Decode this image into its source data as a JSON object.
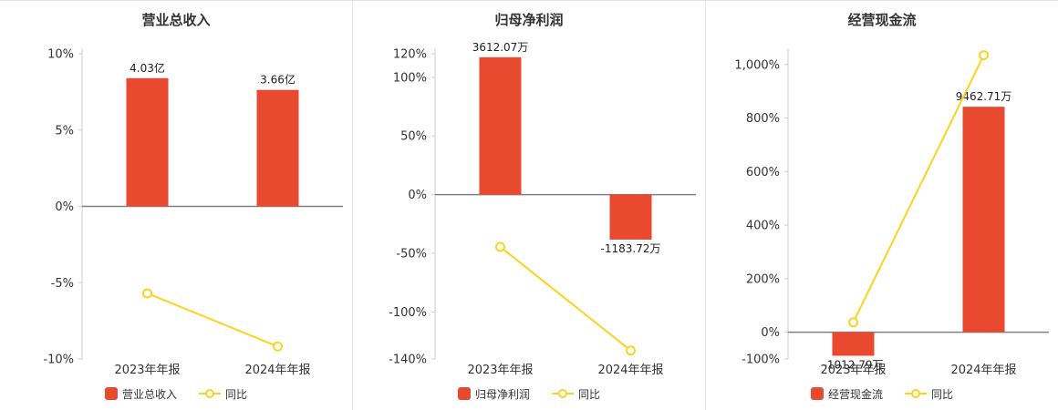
{
  "page": {
    "background": "#ffffff"
  },
  "chart_data": [
    {
      "type": "bar",
      "title": "营业总收入",
      "categories": [
        "2023年年报",
        "2024年年报"
      ],
      "bar_series": {
        "name": "营业总收入",
        "value_labels": [
          "4.03亿",
          "3.66亿"
        ],
        "plotted_pct": [
          8.4,
          7.63
        ]
      },
      "line_series": {
        "name": "同比",
        "values_pct": [
          -5.7,
          -9.18
        ]
      },
      "ylim": [
        -10,
        10
      ],
      "yticks": [
        {
          "value": 10,
          "label": "10%"
        },
        {
          "value": 5,
          "label": "5%"
        },
        {
          "value": 0,
          "label": "0%"
        },
        {
          "value": -5,
          "label": "-5%"
        },
        {
          "value": -10,
          "label": "-10%"
        }
      ],
      "legend_position": "bottom",
      "grid": false,
      "bar_color": "#e8492f",
      "line_color": "#ffd21e"
    },
    {
      "type": "bar",
      "title": "归母净利润",
      "categories": [
        "2023年年报",
        "2024年年报"
      ],
      "bar_series": {
        "name": "归母净利润",
        "value_labels": [
          "3612.07万",
          "-1183.72万"
        ],
        "plotted_pct": [
          117,
          -38.3
        ]
      },
      "line_series": {
        "name": "同比",
        "values_pct": [
          -44.5,
          -132.77
        ]
      },
      "ylim": [
        -140,
        120
      ],
      "yticks": [
        {
          "value": 120,
          "label": "120%"
        },
        {
          "value": 100,
          "label": "100%"
        },
        {
          "value": 50,
          "label": "50%"
        },
        {
          "value": 0,
          "label": "0%"
        },
        {
          "value": -50,
          "label": "-50%"
        },
        {
          "value": -100,
          "label": "-100%"
        },
        {
          "value": -140,
          "label": "-140%"
        }
      ],
      "legend_position": "bottom",
      "grid": false,
      "bar_color": "#e8492f",
      "line_color": "#ffd21e"
    },
    {
      "type": "bar",
      "title": "经营现金流",
      "categories": [
        "2023年年报",
        "2024年年报"
      ],
      "bar_series": {
        "name": "经营现金流",
        "value_labels": [
          "-1012.79万",
          "9462.71万"
        ],
        "plotted_pct": [
          -88,
          842
        ]
      },
      "line_series": {
        "name": "同比",
        "values_pct": [
          37,
          1034.33
        ]
      },
      "ylim": [
        -100,
        1040
      ],
      "yticks": [
        {
          "value": 1000,
          "label": "1,000%"
        },
        {
          "value": 800,
          "label": "800%"
        },
        {
          "value": 600,
          "label": "600%"
        },
        {
          "value": 400,
          "label": "400%"
        },
        {
          "value": 200,
          "label": "200%"
        },
        {
          "value": 0,
          "label": "0%"
        },
        {
          "value": -100,
          "label": "-100%"
        }
      ],
      "legend_position": "bottom",
      "grid": false,
      "bar_color": "#e8492f",
      "line_color": "#ffd21e"
    }
  ]
}
